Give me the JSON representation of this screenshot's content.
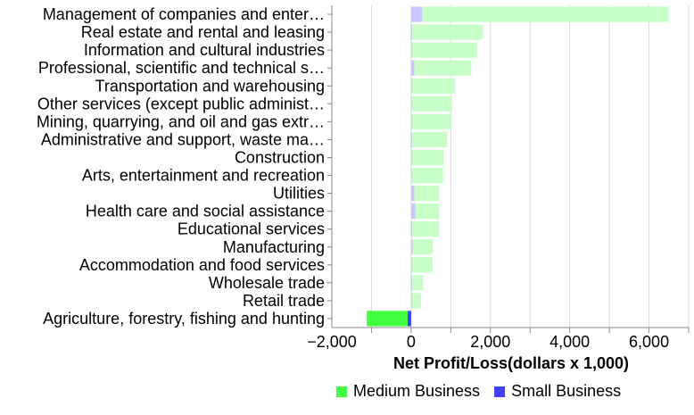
{
  "chart_data": {
    "type": "bar",
    "orientation": "horizontal",
    "stacked": true,
    "categories": [
      "Management of companies and enter…",
      "Real estate and rental and leasing",
      "Information and cultural industries",
      "Professional, scientific and technical s…",
      "Transportation and warehousing",
      "Other services (except public administ…",
      "Mining, quarrying, and oil and gas extr…",
      "Administrative and support, waste ma…",
      "Construction",
      "Arts, entertainment and recreation",
      "Utilities",
      "Health care and social assistance",
      "Educational services",
      "Manufacturing",
      "Accommodation and food services",
      "Wholesale trade",
      "Retail trade",
      "Agriculture, forestry, fishing and hunting"
    ],
    "series": [
      {
        "name": "Small Business",
        "color": "#4040ff",
        "values": [
          280,
          30,
          20,
          80,
          20,
          20,
          20,
          30,
          20,
          20,
          80,
          110,
          30,
          40,
          20,
          30,
          20,
          -90
        ]
      },
      {
        "name": "Medium Business",
        "color": "#40ff40",
        "values": [
          6220,
          1770,
          1640,
          1440,
          1090,
          1010,
          1000,
          880,
          800,
          790,
          630,
          600,
          680,
          510,
          520,
          270,
          230,
          -1030
        ]
      }
    ],
    "xlabel": "Net Profit/Loss(dollars x 1,000)",
    "ylabel": "",
    "xlim": [
      -2000,
      7000
    ],
    "xticks": [
      -2000,
      0,
      2000,
      4000,
      6000
    ],
    "xtick_labels": [
      "−2,000",
      "0",
      "2,000",
      "4,000",
      "6,000"
    ],
    "grid": true,
    "highlighted_category": "Agriculture, forestry, fishing and hunting",
    "legend_position": "bottom",
    "legend": [
      {
        "name": "Medium Business",
        "color": "#40ff40"
      },
      {
        "name": "Small Business",
        "color": "#4040ff"
      }
    ]
  }
}
